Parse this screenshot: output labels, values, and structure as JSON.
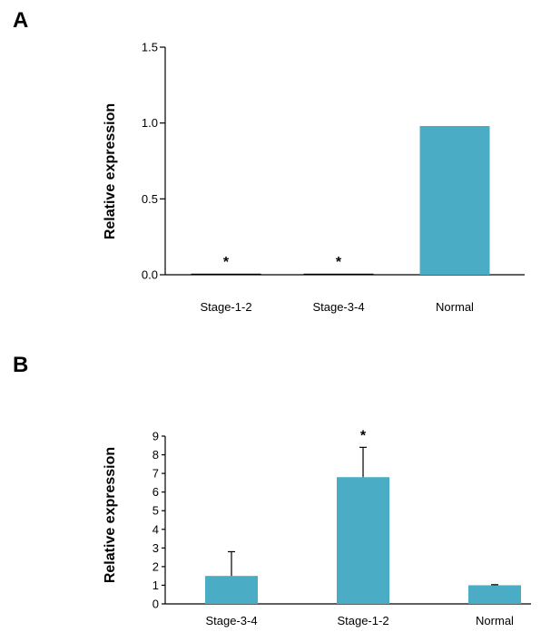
{
  "chart_data": [
    {
      "type": "bar",
      "panel_label": "A",
      "ylabel": "Relative expression",
      "categories": [
        "Stage-1-2",
        "Stage-3-4",
        "Normal"
      ],
      "values": [
        0.005,
        0.005,
        0.98
      ],
      "annotations": [
        "*",
        "*",
        ""
      ],
      "ylim": [
        0,
        1.5
      ],
      "yticks": [
        "0.0",
        "0.5",
        "1.0",
        "1.5"
      ],
      "color": "#4bacc6",
      "grid": false
    },
    {
      "type": "bar",
      "panel_label": "B",
      "ylabel": "Relative expression",
      "categories": [
        "Stage-3-4",
        "Stage-1-2",
        "Normal"
      ],
      "values": [
        1.5,
        6.8,
        1.0
      ],
      "errors": [
        1.3,
        1.6,
        0.03
      ],
      "annotations": [
        "",
        "*",
        ""
      ],
      "ylim": [
        0,
        9
      ],
      "yticks": [
        "0",
        "1",
        "2",
        "3",
        "4",
        "5",
        "6",
        "7",
        "8",
        "9"
      ],
      "color": "#4bacc6",
      "grid": false
    }
  ]
}
